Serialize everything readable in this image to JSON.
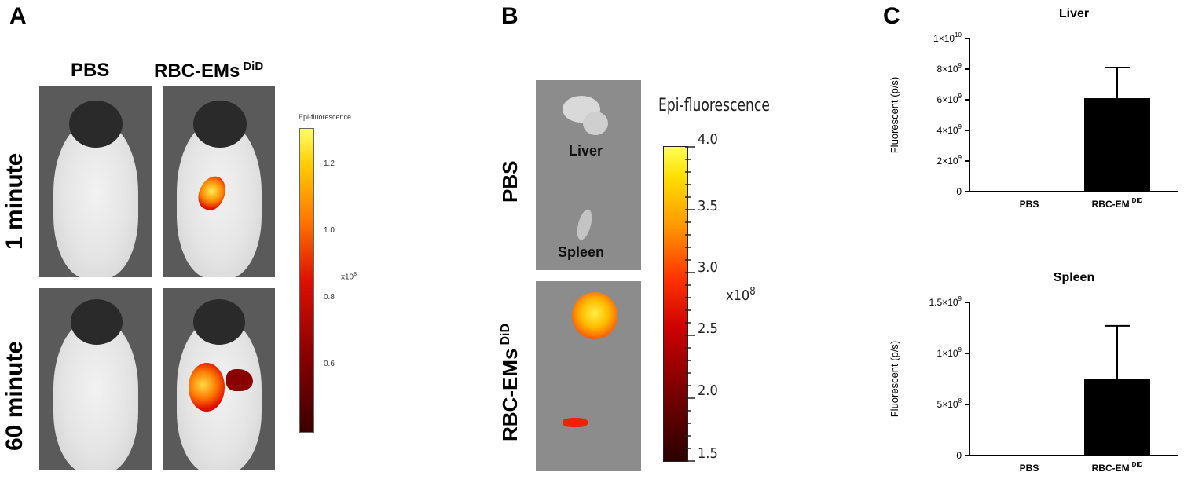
{
  "panels": {
    "a": {
      "letter": "A",
      "col_labels": [
        "PBS",
        "RBC-EMs"
      ],
      "col2_superscript": "DiD",
      "row_labels": [
        "1 minute",
        "60 minute"
      ],
      "colorbar": {
        "title": "Epi-fluorescence",
        "ticks": [
          "1.2",
          "1.0",
          "0.8",
          "0.6"
        ],
        "unit": "x10",
        "unit_exp": "8",
        "colors": [
          "#ffff66",
          "#ffcc00",
          "#ff7700",
          "#dd1100",
          "#880000",
          "#3a0000"
        ]
      }
    },
    "b": {
      "letter": "B",
      "row_labels": [
        "PBS",
        "RBC-EMs"
      ],
      "row2_superscript": "DiD",
      "organ_labels": [
        "Liver",
        "Spleen"
      ],
      "colorbar": {
        "title": "Epi-fluorescence",
        "ticks": [
          "4.0",
          "3.5",
          "3.0",
          "2.5",
          "2.0",
          "1.5"
        ],
        "unit": "x10",
        "unit_exp": "8"
      }
    },
    "c": {
      "letter": "C"
    }
  },
  "chart_data": [
    {
      "type": "bar",
      "title": "Liver",
      "ylabel": "Fluorescent (p/s)",
      "categories": [
        "PBS",
        "RBC-EM"
      ],
      "category_superscripts": [
        "",
        "DiD"
      ],
      "values": [
        30000000,
        6100000000
      ],
      "error": [
        0,
        2000000000
      ],
      "ylim": [
        0,
        10000000000
      ],
      "yticks": [
        0,
        2000000000,
        4000000000,
        6000000000,
        8000000000,
        10000000000
      ],
      "ytick_labels": [
        {
          "m": "0",
          "e": ""
        },
        {
          "m": "2×10",
          "e": "9"
        },
        {
          "m": "4×10",
          "e": "9"
        },
        {
          "m": "6×10",
          "e": "9"
        },
        {
          "m": "8×10",
          "e": "9"
        },
        {
          "m": "1×10",
          "e": "10"
        }
      ],
      "bar_color": "#000000"
    },
    {
      "type": "bar",
      "title": "Spleen",
      "ylabel": "Fluorescent (p/s)",
      "categories": [
        "PBS",
        "RBC-EM"
      ],
      "category_superscripts": [
        "",
        "DiD"
      ],
      "values": [
        0,
        750000000
      ],
      "error": [
        0,
        520000000
      ],
      "ylim": [
        0,
        1500000000
      ],
      "yticks": [
        0,
        500000000,
        1000000000,
        1500000000
      ],
      "ytick_labels": [
        {
          "m": "0",
          "e": ""
        },
        {
          "m": "5×10",
          "e": "8"
        },
        {
          "m": "1×10",
          "e": "9"
        },
        {
          "m": "1.5×10",
          "e": "9"
        }
      ],
      "bar_color": "#000000"
    }
  ]
}
